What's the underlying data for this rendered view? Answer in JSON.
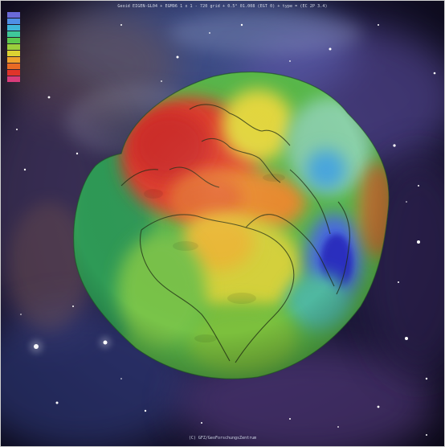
{
  "image": {
    "header_text": "Geoid EIGEN-GL04 + EGM96 1 x 1 - 720 grid + 0.5° 01.008 (EGT 0) + type = (EC 2P 3.4)",
    "footer_text": "(C) GFZ/GeoForschungsZentrum"
  },
  "legend": {
    "swatches": [
      {
        "color": "#6a6ad8",
        "label": ""
      },
      {
        "color": "#4f8fe6",
        "label": ""
      },
      {
        "color": "#3fb6d8",
        "label": ""
      },
      {
        "color": "#3fc79a",
        "label": ""
      },
      {
        "color": "#5cc84e",
        "label": ""
      },
      {
        "color": "#9ccf3c",
        "label": ""
      },
      {
        "color": "#dcd232",
        "label": ""
      },
      {
        "color": "#efa12c",
        "label": ""
      },
      {
        "color": "#e86a24",
        "label": ""
      },
      {
        "color": "#e0342a",
        "label": ""
      },
      {
        "color": "#d83c7a",
        "label": ""
      }
    ]
  },
  "colors": {
    "space": "#120c22",
    "nebula_blue": "#3f63b8",
    "nebula_violet": "#7a4aa6",
    "nebula_brown": "#8a5a3a",
    "geoid_high": "#d9362b",
    "geoid_mid": "#e9d63c",
    "geoid_low": "#2b3fbf",
    "geoid_base": "#58b84a"
  }
}
